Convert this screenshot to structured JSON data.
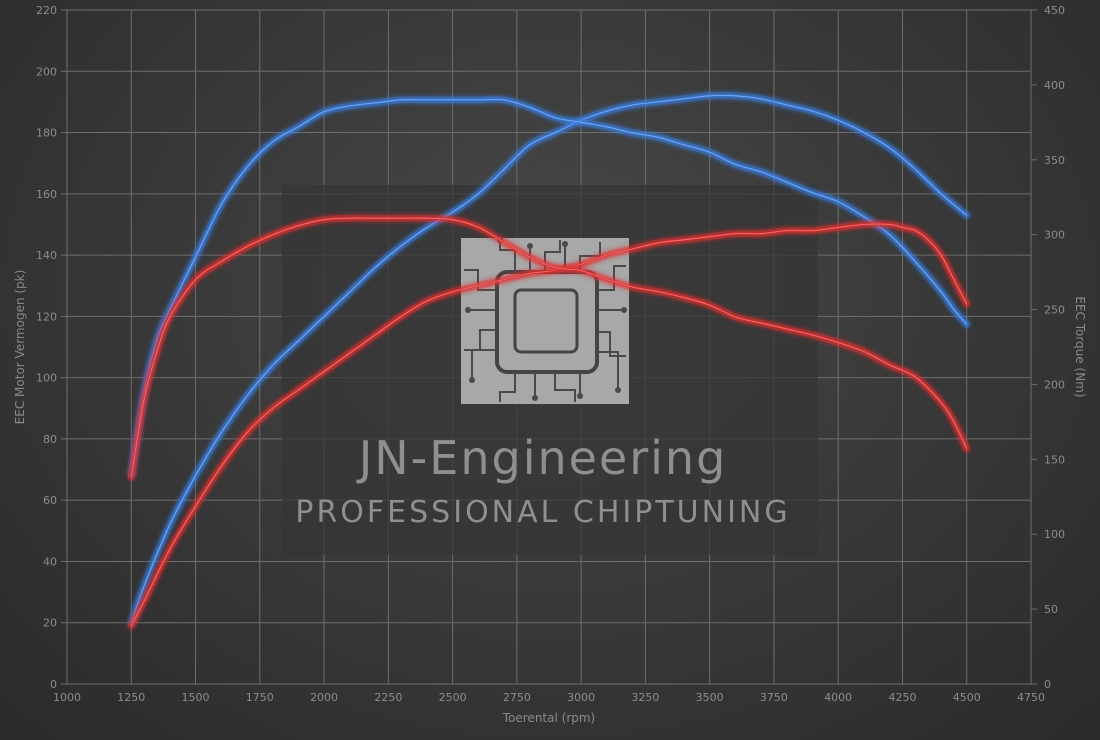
{
  "watermark": {
    "title": "JN-Engineering",
    "subtitle": "PROFESSIONAL CHIPTUNING",
    "logo_icon": "circuit-chip-icon"
  },
  "colors": {
    "tuned": "#3a7de0",
    "stock": "#e03030",
    "grid": "#6e6e6e",
    "text": "#8c8c8c"
  },
  "chart_data": {
    "type": "line",
    "xlabel": "Toerental (rpm)",
    "ylabel": "EEC Motor Vermogen (pk)",
    "y2label": "EEC Torque (Nm)",
    "xlim": [
      1000,
      4750
    ],
    "ylim": [
      0,
      220
    ],
    "y2lim": [
      0,
      450
    ],
    "xticks": [
      "1000",
      "1250",
      "1500",
      "1750",
      "2000",
      "2250",
      "2500",
      "2750",
      "3000",
      "3250",
      "3500",
      "3750",
      "4000",
      "4250",
      "4500",
      "4750"
    ],
    "yticks": [
      "0",
      "20",
      "40",
      "60",
      "80",
      "100",
      "120",
      "140",
      "160",
      "180",
      "200",
      "220"
    ],
    "y2ticks": [
      "0",
      "50",
      "100",
      "150",
      "200",
      "250",
      "300",
      "350",
      "400",
      "450"
    ],
    "grid": true,
    "series": [
      {
        "kind": "power",
        "variant": "tuned",
        "axis": "left",
        "x": [
          1250,
          1300,
          1400,
          1500,
          1600,
          1700,
          1800,
          1900,
          2000,
          2100,
          2200,
          2300,
          2400,
          2500,
          2600,
          2700,
          2800,
          2900,
          3000,
          3100,
          3200,
          3300,
          3400,
          3500,
          3600,
          3700,
          3800,
          3900,
          4000,
          4100,
          4200,
          4300,
          4400,
          4500
        ],
        "y": [
          20,
          32,
          52,
          68,
          82,
          94,
          104,
          112,
          120,
          128,
          136,
          143,
          149,
          154,
          160,
          168,
          176,
          180,
          184,
          187,
          189,
          190,
          191,
          192,
          192,
          191,
          189,
          187,
          184,
          180,
          175,
          168,
          160,
          153
        ]
      },
      {
        "kind": "torque",
        "variant": "tuned",
        "axis": "right",
        "x": [
          1250,
          1300,
          1350,
          1400,
          1500,
          1600,
          1700,
          1800,
          1900,
          2000,
          2100,
          2200,
          2300,
          2400,
          2500,
          2600,
          2700,
          2800,
          2900,
          3000,
          3100,
          3200,
          3300,
          3400,
          3500,
          3600,
          3700,
          3800,
          3900,
          4000,
          4100,
          4200,
          4300,
          4400,
          4450,
          4500
        ],
        "y": [
          140,
          195,
          230,
          250,
          285,
          320,
          345,
          362,
          372,
          382,
          386,
          388,
          390,
          390,
          390,
          390,
          390,
          385,
          378,
          375,
          372,
          368,
          365,
          360,
          355,
          347,
          342,
          335,
          328,
          322,
          312,
          300,
          282,
          262,
          250,
          240
        ]
      },
      {
        "kind": "power",
        "variant": "stock",
        "axis": "left",
        "x": [
          1250,
          1300,
          1400,
          1500,
          1600,
          1700,
          1800,
          1900,
          2000,
          2100,
          2200,
          2300,
          2400,
          2500,
          2600,
          2700,
          2800,
          2900,
          3000,
          3100,
          3200,
          3300,
          3400,
          3500,
          3600,
          3700,
          3800,
          3900,
          4000,
          4100,
          4200,
          4250,
          4300,
          4350,
          4400,
          4450,
          4500
        ],
        "y": [
          19,
          27,
          44,
          58,
          71,
          82,
          90,
          96,
          102,
          108,
          114,
          120,
          125,
          128,
          130,
          132,
          134,
          135,
          137,
          140,
          142,
          144,
          145,
          146,
          147,
          147,
          148,
          148,
          149,
          150,
          150,
          149,
          148,
          145,
          140,
          132,
          124
        ]
      },
      {
        "kind": "torque",
        "variant": "stock",
        "axis": "right",
        "x": [
          1250,
          1300,
          1350,
          1400,
          1500,
          1600,
          1700,
          1800,
          1900,
          2000,
          2100,
          2200,
          2300,
          2400,
          2500,
          2600,
          2700,
          2800,
          2900,
          3000,
          3100,
          3200,
          3300,
          3400,
          3500,
          3600,
          3700,
          3800,
          3900,
          4000,
          4100,
          4200,
          4300,
          4400,
          4450,
          4500
        ],
        "y": [
          138,
          190,
          222,
          245,
          270,
          282,
          292,
          300,
          306,
          310,
          311,
          311,
          311,
          311,
          310,
          305,
          295,
          285,
          278,
          276,
          270,
          265,
          262,
          258,
          253,
          245,
          241,
          237,
          233,
          228,
          222,
          213,
          205,
          188,
          175,
          157
        ]
      }
    ]
  }
}
